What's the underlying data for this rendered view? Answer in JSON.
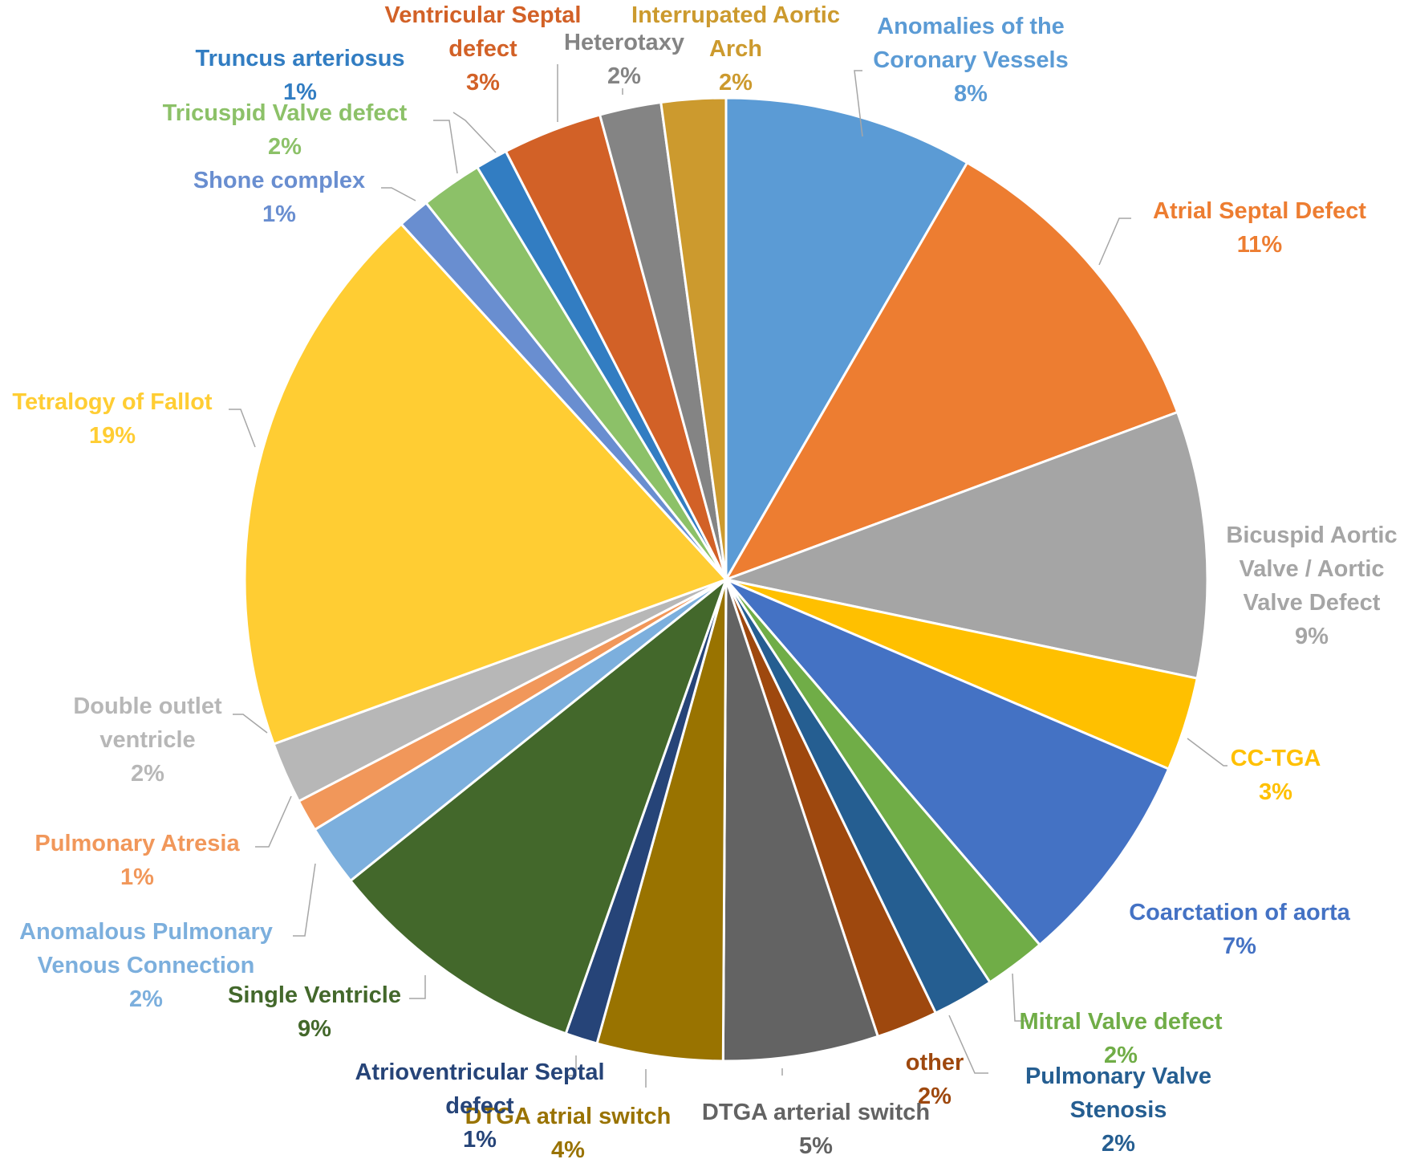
{
  "chart_data": {
    "type": "pie",
    "title": "",
    "slices": [
      {
        "label": "Anomalies of the Coronary Vessels",
        "lines": [
          "Anomalies of the",
          "Coronary Vessels"
        ],
        "value_label": "8%",
        "value": 8.5,
        "color": "#5B9BD5"
      },
      {
        "label": "Atrial Septal Defect",
        "lines": [
          "Atrial Septal Defect"
        ],
        "value_label": "11%",
        "value": 11.2,
        "color": "#ED7D31"
      },
      {
        "label": "Bicuspid Aortic Valve / Aortic Valve Defect",
        "lines": [
          "Bicuspid Aortic",
          "Valve / Aortic",
          "Valve Defect"
        ],
        "value_label": "9%",
        "value": 9.1,
        "color": "#A5A5A5"
      },
      {
        "label": "CC-TGA",
        "lines": [
          "CC-TGA"
        ],
        "value_label": "3%",
        "value": 3.2,
        "color": "#FFC000"
      },
      {
        "label": "Coarctation of aorta",
        "lines": [
          "Coarctation of aorta"
        ],
        "value_label": "7%",
        "value": 7.4,
        "color": "#4472C4"
      },
      {
        "label": "Mitral Valve defect",
        "lines": [
          "Mitral Valve defect"
        ],
        "value_label": "2%",
        "value": 2.1,
        "color": "#70AD47"
      },
      {
        "label": "Pulmonary Valve Stenosis",
        "lines": [
          "Pulmonary Valve",
          "Stenosis"
        ],
        "value_label": "2%",
        "value": 2.1,
        "color": "#255E91"
      },
      {
        "label": "other",
        "lines": [
          "other"
        ],
        "value_label": "2%",
        "value": 2.1,
        "color": "#9E480E"
      },
      {
        "label": "DTGA arterial switch",
        "lines": [
          "DTGA arterial switch"
        ],
        "value_label": "5%",
        "value": 5.3,
        "color": "#636363"
      },
      {
        "label": "DTGA atrial switch",
        "lines": [
          "DTGA atrial switch"
        ],
        "value_label": "4%",
        "value": 4.3,
        "color": "#997300"
      },
      {
        "label": "Atrioventricular Septal defect",
        "lines": [
          "Atrioventricular Septal",
          "defect"
        ],
        "value_label": "1%",
        "value": 1.1,
        "color": "#264478"
      },
      {
        "label": "Single Ventricle",
        "lines": [
          "Single Ventricle"
        ],
        "value_label": "9%",
        "value": 9.0,
        "color": "#43682B"
      },
      {
        "label": "Anomalous Pulmonary Venous Connection",
        "lines": [
          "Anomalous Pulmonary",
          "Venous Connection"
        ],
        "value_label": "2%",
        "value": 2.1,
        "color": "#7CAFDD"
      },
      {
        "label": "Pulmonary Atresia",
        "lines": [
          "Pulmonary Atresia"
        ],
        "value_label": "1%",
        "value": 1.1,
        "color": "#F1975A"
      },
      {
        "label": "Double outlet ventricle",
        "lines": [
          "Double outlet",
          "ventricle"
        ],
        "value_label": "2%",
        "value": 2.1,
        "color": "#B7B7B7"
      },
      {
        "label": "Tetralogy of Fallot",
        "lines": [
          "Tetralogy of Fallot"
        ],
        "value_label": "19%",
        "value": 19.1,
        "color": "#FFCD33"
      },
      {
        "label": "Shone complex",
        "lines": [
          "Shone complex"
        ],
        "value_label": "1%",
        "value": 1.1,
        "color": "#698ED0"
      },
      {
        "label": "Tricuspid Valve defect",
        "lines": [
          "Tricuspid Valve defect"
        ],
        "value_label": "2%",
        "value": 2.1,
        "color": "#8CC168"
      },
      {
        "label": "Truncus arteriosus",
        "lines": [
          "Truncus arteriosus"
        ],
        "value_label": "1%",
        "value": 1.1,
        "color": "#327DC2"
      },
      {
        "label": "Ventricular Septal defect",
        "lines": [
          "Ventricular Septal",
          "defect"
        ],
        "value_label": "3%",
        "value": 3.4,
        "color": "#D26127"
      },
      {
        "label": "Heterotaxy",
        "lines": [
          "Heterotaxy"
        ],
        "value_label": "2%",
        "value": 2.1,
        "color": "#848484"
      },
      {
        "label": "Interrupated Aortic Arch",
        "lines": [
          "Interrupated Aortic",
          "Arch"
        ],
        "value_label": "2%",
        "value": 2.2,
        "color": "#CC9A2E"
      }
    ],
    "label_colors": [
      "#5B9BD5",
      "#ED7D31",
      "#A5A5A5",
      "#FFC000",
      "#4472C4",
      "#70AD47",
      "#255E91",
      "#9E480E",
      "#636363",
      "#997300",
      "#264478",
      "#43682B",
      "#7CAFDD",
      "#F1975A",
      "#B7B7B7",
      "#FFCD33",
      "#698ED0",
      "#8CC168",
      "#327DC2",
      "#D26127",
      "#848484",
      "#CC9A2E"
    ],
    "start_angle_deg": 0,
    "direction": "clockwise",
    "legend": "none",
    "data_labels": "outside-with-leader-lines"
  }
}
